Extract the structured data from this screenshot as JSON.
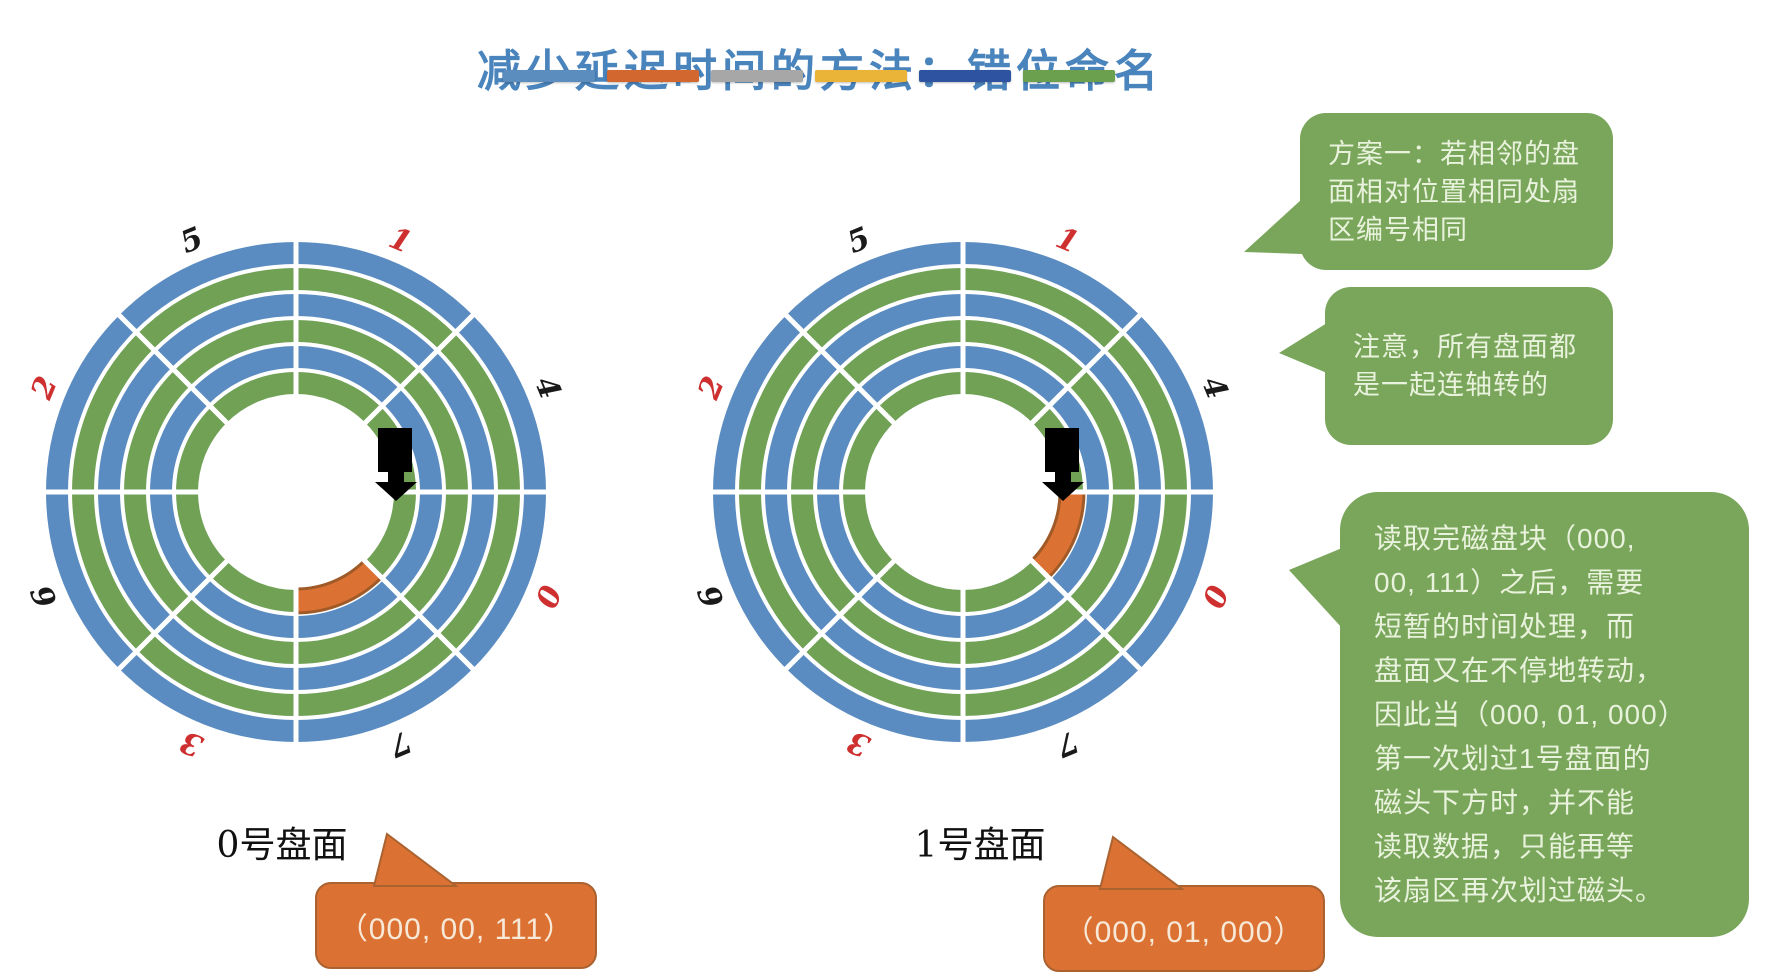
{
  "title": {
    "text": "减少延迟时间的方法：错位命名",
    "color": "#4A84BC"
  },
  "accent_bar": {
    "colors": [
      "#5B8DBE",
      "#D2672F",
      "#A7A7A7",
      "#E9B437",
      "#2E54A1",
      "#6BA04F"
    ]
  },
  "disk_style": {
    "track_colors": [
      "#5B8CC1",
      "#70A155",
      "#5B8CC1",
      "#70A155",
      "#5B8CC1",
      "#70A155"
    ],
    "highlight_fill": "#DB7233",
    "highlight_border": "#A05A28",
    "spoke_color": "#FFFFFF",
    "hub_color": "#FFFFFF",
    "head_color": "#000000",
    "label_red": "#CE2F2F",
    "label_black": "#1A1A1A"
  },
  "disks": [
    {
      "name": "0号盘面",
      "callout_text": "（000, 00, 111）",
      "sector_labels": [
        {
          "text": "1",
          "angle": 22.5,
          "color": "red"
        },
        {
          "text": "4",
          "angle": 67.5,
          "color": "black"
        },
        {
          "text": "0",
          "angle": 112.5,
          "color": "red"
        },
        {
          "text": "7",
          "angle": 157.5,
          "color": "black"
        },
        {
          "text": "3",
          "angle": 202.5,
          "color": "red"
        },
        {
          "text": "6",
          "angle": 247.5,
          "color": "black"
        },
        {
          "text": "2",
          "angle": 292.5,
          "color": "red"
        },
        {
          "text": "5",
          "angle": 337.5,
          "color": "black"
        }
      ],
      "highlight": {
        "track": "innermost",
        "start_angle": 135,
        "end_angle": 180
      },
      "head": true
    },
    {
      "name": "1号盘面",
      "callout_text": "（000, 01, 000）",
      "sector_labels": [
        {
          "text": "1",
          "angle": 22.5,
          "color": "red"
        },
        {
          "text": "4",
          "angle": 67.5,
          "color": "black"
        },
        {
          "text": "0",
          "angle": 112.5,
          "color": "red"
        },
        {
          "text": "7",
          "angle": 157.5,
          "color": "black"
        },
        {
          "text": "3",
          "angle": 202.5,
          "color": "red"
        },
        {
          "text": "6",
          "angle": 247.5,
          "color": "black"
        },
        {
          "text": "2",
          "ang5e": 292.5,
          "angle": 292.5,
          "color": "red"
        },
        {
          "text": "5",
          "angle": 337.5,
          "color": "black"
        }
      ],
      "highlight": {
        "track": "innermost",
        "start_angle": 90,
        "end_angle": 135
      },
      "head": true
    }
  ],
  "bubbles": [
    {
      "lines": [
        "方案一：若相邻的盘",
        "面相对位置相同处扇",
        "区编号相同"
      ]
    },
    {
      "lines": [
        "注意，所有盘面都",
        "是一起连轴转的"
      ]
    },
    {
      "lines": [
        "读取完磁盘块（000,",
        "00, 111）之后，需要",
        "短暂的时间处理，而",
        "盘面又在不停地转动，",
        "因此当（000, 01, 000）",
        "第一次划过1号盘面的",
        "磁头下方时，并不能",
        "读取数据，只能再等",
        "该扇区再次划过磁头。"
      ]
    }
  ],
  "colors": {
    "bubble_green": "#79A65A",
    "bubble_text": "#E9F2DC",
    "callout_orange": "#DB7233",
    "callout_border": "#A96230",
    "callout_text": "#F7E8D7"
  }
}
